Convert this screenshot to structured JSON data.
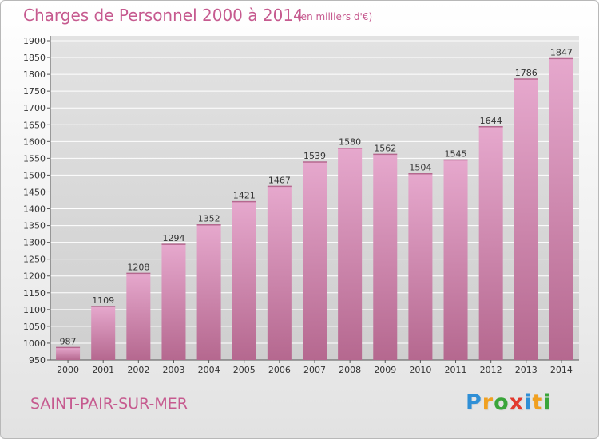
{
  "header": {
    "title": "Charges de Personnel 2000 à 2014",
    "subtitle": "(en milliers d'€)"
  },
  "footer": {
    "commune": "SAINT-PAIR-SUR-MER",
    "logo": "Proxiti",
    "logo_letters": [
      {
        "ch": "P",
        "color": "#2f8fd6"
      },
      {
        "ch": "r",
        "color": "#f0a020"
      },
      {
        "ch": "o",
        "color": "#3aa53a"
      },
      {
        "ch": "x",
        "color": "#e2392d"
      },
      {
        "ch": "i",
        "color": "#2f8fd6"
      },
      {
        "ch": "t",
        "color": "#f0a020"
      },
      {
        "ch": "i",
        "color": "#3aa53a"
      }
    ]
  },
  "colors": {
    "accent": "#c65a8f",
    "bar_top": "#e6a8cd",
    "bar_bottom": "#b5688f",
    "plot_bg_top": "#e2e2e2",
    "plot_bg_bottom": "#cfcfcf",
    "grid": "#ffffff"
  },
  "chart_data": {
    "type": "bar",
    "title": "Charges de Personnel 2000 à 2014",
    "subtitle": "(en milliers d'€)",
    "categories": [
      "2000",
      "2001",
      "2002",
      "2003",
      "2004",
      "2005",
      "2006",
      "2007",
      "2008",
      "2009",
      "2010",
      "2011",
      "2012",
      "2013",
      "2014"
    ],
    "values": [
      987,
      1109,
      1208,
      1294,
      1352,
      1421,
      1467,
      1539,
      1580,
      1562,
      1504,
      1545,
      1644,
      1786,
      1847
    ],
    "ylim": [
      950,
      1900
    ],
    "ytick_step": 50,
    "xlabel": "",
    "ylabel": "",
    "grid": true,
    "data_labels": true
  }
}
